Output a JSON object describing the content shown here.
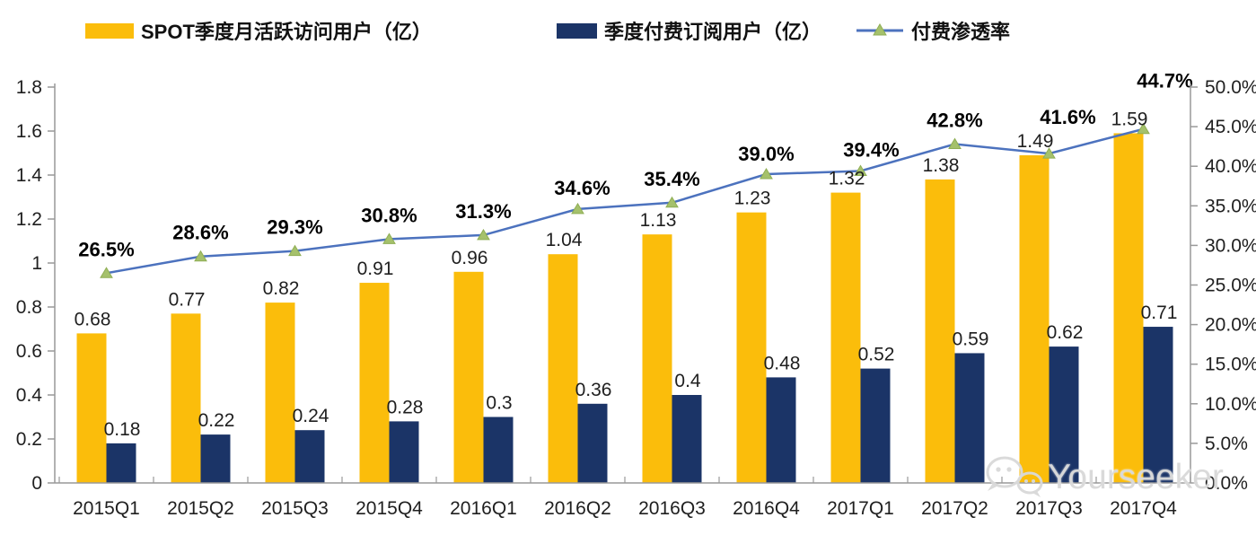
{
  "legend": {
    "items": [
      {
        "label": "SPOT季度月活跃访问用户（亿）",
        "type": "bar",
        "color": "#FBBD0B"
      },
      {
        "label": "季度付费订阅用户（亿）",
        "type": "bar",
        "color": "#1B3467"
      },
      {
        "label": "付费渗透率",
        "type": "line",
        "line_color": "#4C72BE",
        "marker_color": "#A5C16C"
      }
    ]
  },
  "chart_data": {
    "type": "combo-bar-line",
    "categories": [
      "2015Q1",
      "2015Q2",
      "2015Q3",
      "2015Q4",
      "2016Q1",
      "2016Q2",
      "2016Q3",
      "2016Q4",
      "2017Q1",
      "2017Q2",
      "2017Q3",
      "2017Q4"
    ],
    "series": [
      {
        "name": "SPOT季度月活跃访问用户（亿）",
        "type": "bar",
        "axis": "left",
        "color": "#FBBD0B",
        "values": [
          0.68,
          0.77,
          0.82,
          0.91,
          0.96,
          1.04,
          1.13,
          1.23,
          1.32,
          1.38,
          1.49,
          1.59
        ],
        "labels": [
          "0.68",
          "0.77",
          "0.82",
          "0.91",
          "0.96",
          "1.04",
          "1.13",
          "1.23",
          "1.32",
          "1.38",
          "1.49",
          "1.59"
        ]
      },
      {
        "name": "季度付费订阅用户（亿）",
        "type": "bar",
        "axis": "left",
        "color": "#1B3467",
        "values": [
          0.18,
          0.22,
          0.24,
          0.28,
          0.3,
          0.36,
          0.4,
          0.48,
          0.52,
          0.59,
          0.62,
          0.71
        ],
        "labels": [
          "0.18",
          "0.22",
          "0.24",
          "0.28",
          "0.3",
          "0.36",
          "0.4",
          "0.48",
          "0.52",
          "0.59",
          "0.62",
          "0.71"
        ]
      },
      {
        "name": "付费渗透率",
        "type": "line",
        "axis": "right",
        "color": "#4C72BE",
        "marker": "triangle",
        "marker_color": "#A5C16C",
        "marker_edge": "#8FAE54",
        "values": [
          26.5,
          28.6,
          29.3,
          30.8,
          31.3,
          34.6,
          35.4,
          39.0,
          39.4,
          42.8,
          41.6,
          44.7
        ],
        "labels": [
          "26.5%",
          "28.6%",
          "29.3%",
          "30.8%",
          "31.3%",
          "34.6%",
          "35.4%",
          "39.0%",
          "39.4%",
          "42.8%",
          "41.6%",
          "44.7%"
        ]
      }
    ],
    "left_axis": {
      "min": 0,
      "max": 1.8,
      "step": 0.2,
      "tick_labels": [
        "0",
        "0.2",
        "0.4",
        "0.6",
        "0.8",
        "1",
        "1.2",
        "1.4",
        "1.6",
        "1.8"
      ]
    },
    "right_axis": {
      "min": 0,
      "max": 50,
      "step": 5,
      "tick_labels": [
        "0.0%",
        "5.0%",
        "10.0%",
        "15.0%",
        "20.0%",
        "25.0%",
        "30.0%",
        "35.0%",
        "40.0%",
        "45.0%",
        "50.0%"
      ]
    },
    "grid": false,
    "legend_position": "top",
    "title": ""
  },
  "watermark": {
    "text": "Yourseeker"
  }
}
